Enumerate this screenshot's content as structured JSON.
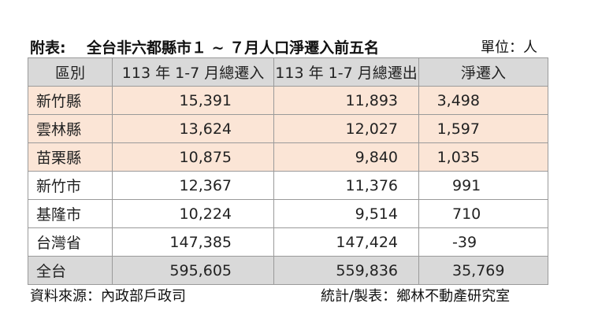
{
  "title": {
    "prefix": "附表:",
    "text": "全台非六都縣市１ ~ ７月人口淨遷入前五名",
    "unit": "單位：人"
  },
  "table": {
    "headers": [
      "區別",
      "113 年 1-7 月總遷入",
      "113 年 1-7 月總遷出",
      "淨遷入"
    ],
    "rows": [
      {
        "region": "新竹縣",
        "in": "15,391",
        "out": "11,893",
        "net": "3,498"
      },
      {
        "region": "雲林縣",
        "in": "13,624",
        "out": "12,027",
        "net": "1,597"
      },
      {
        "region": "苗栗縣",
        "in": "10,875",
        "out": "9,840",
        "net": "1,035"
      },
      {
        "region": "新竹市",
        "in": "12,367",
        "out": "11,376",
        "net": "991"
      },
      {
        "region": "基隆市",
        "in": "10,224",
        "out": "9,514",
        "net": "710"
      },
      {
        "region": "台灣省",
        "in": "147,385",
        "out": "147,424",
        "net": "-39"
      },
      {
        "region": "全台",
        "in": "595,605",
        "out": "559,836",
        "net": "35,769"
      }
    ]
  },
  "footer": {
    "source": "資料來源：內政部戶政司",
    "credit": "統計/製表：鄉林不動產研究室"
  },
  "colors": {
    "highlight": "#fbe5d6",
    "header": "#d9d9d9"
  }
}
